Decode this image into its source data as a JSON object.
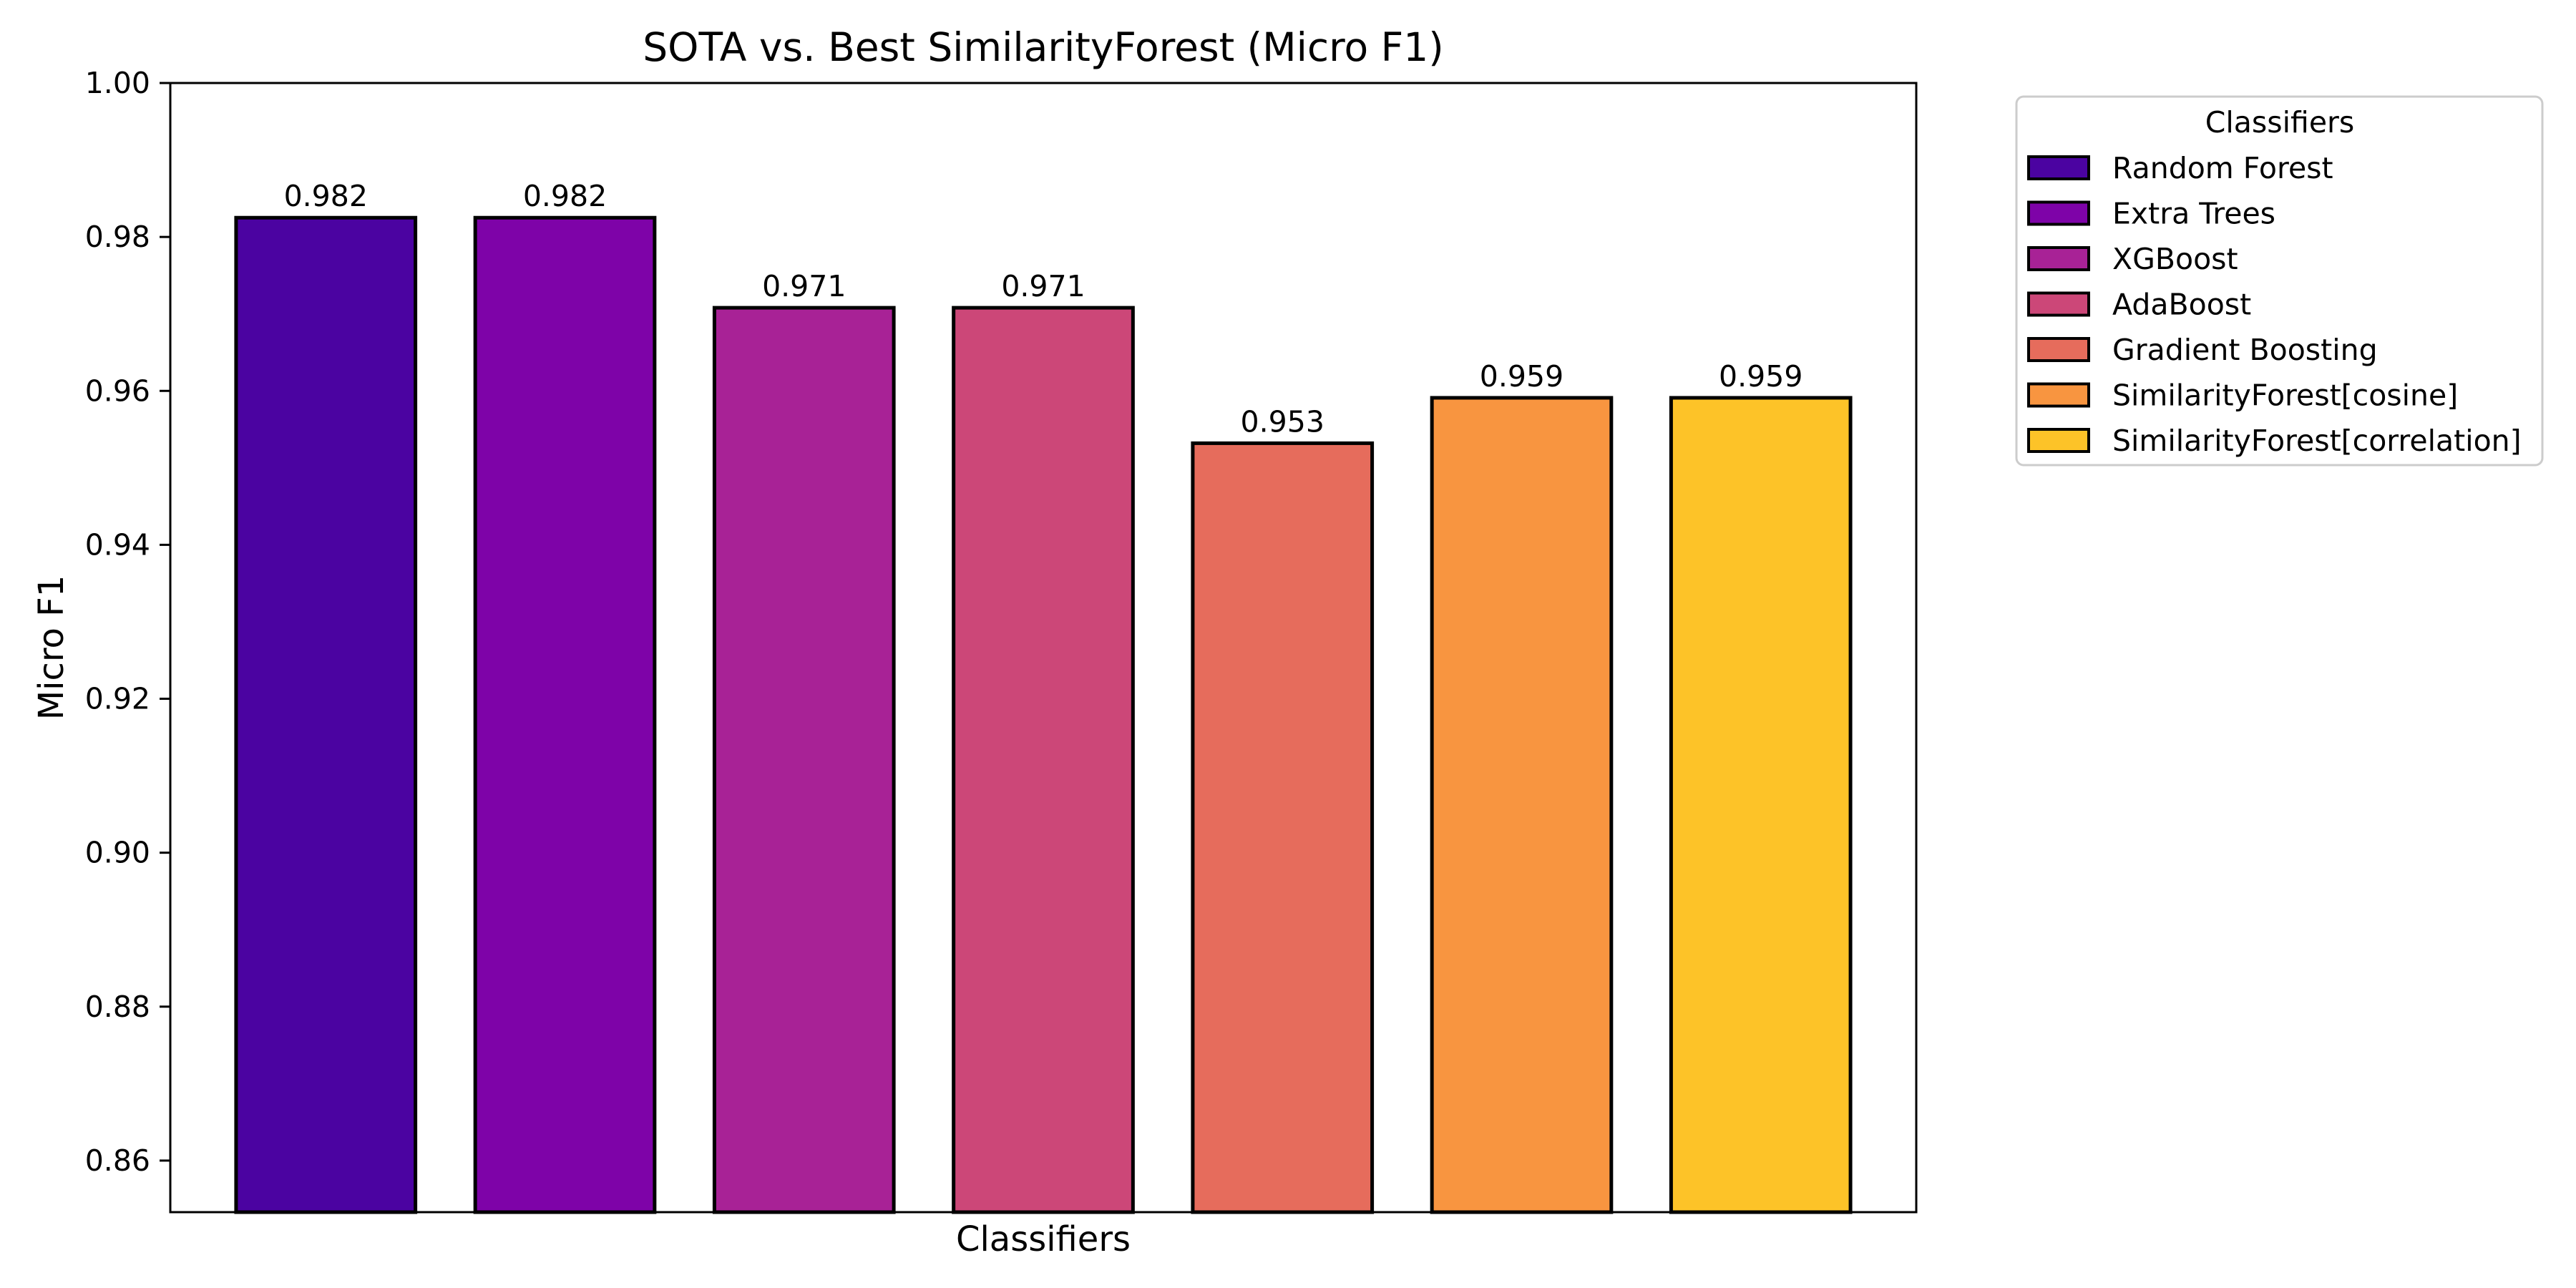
{
  "chart_data": {
    "type": "bar",
    "title": "SOTA vs. Best SimilarityForest (Micro F1)",
    "xlabel": "Classifiers",
    "ylabel": "Micro F1",
    "ylim": [
      0.8533,
      1.0
    ],
    "yticks": [
      "0.86",
      "0.88",
      "0.90",
      "0.92",
      "0.94",
      "0.96",
      "0.98",
      "1.00"
    ],
    "ytick_values": [
      0.86,
      0.88,
      0.9,
      0.92,
      0.94,
      0.96,
      0.98,
      1.0
    ],
    "grid": false,
    "legend": {
      "title": "Classifiers",
      "placement": "outside-top-right"
    },
    "series": [
      {
        "name": "Random Forest",
        "value": 0.9825,
        "label": "0.982",
        "color": "#4b03a1"
      },
      {
        "name": "Extra Trees",
        "value": 0.9825,
        "label": "0.982",
        "color": "#7e03a8"
      },
      {
        "name": "XGBoost",
        "value": 0.9708,
        "label": "0.971",
        "color": "#a82296"
      },
      {
        "name": "AdaBoost",
        "value": 0.9708,
        "label": "0.971",
        "color": "#cc4778"
      },
      {
        "name": "Gradient Boosting",
        "value": 0.9532,
        "label": "0.953",
        "color": "#e66c5c"
      },
      {
        "name": "SimilarityForest[cosine]",
        "value": 0.9591,
        "label": "0.959",
        "color": "#f89540"
      },
      {
        "name": "SimilarityForest[correlation]",
        "value": 0.9591,
        "label": "0.959",
        "color": "#fdc328"
      }
    ]
  }
}
